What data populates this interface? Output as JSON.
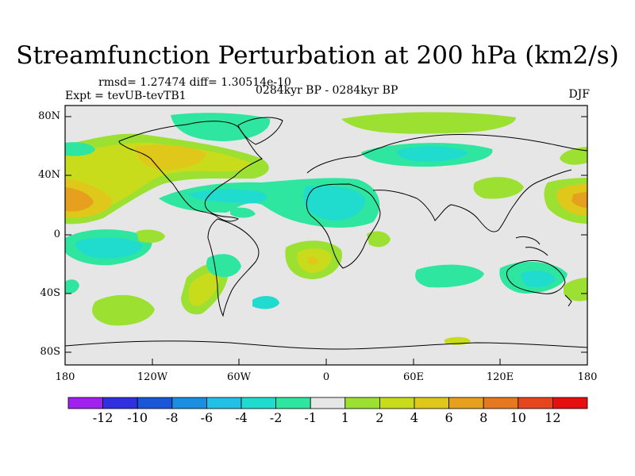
{
  "title": "Streamfunction Perturbation at 200 hPa (km2/s)",
  "subtitle": {
    "stats": "rmsd= 1.27474 diff= 1.30514e-10",
    "experiment": "Expt = tevUB-tevTB1",
    "period": "0284kyr BP - 0284kyr BP",
    "season": "DJF"
  },
  "map": {
    "lat_labels": [
      "80N",
      "40N",
      "0",
      "40S",
      "80S"
    ],
    "lon_labels": [
      "180",
      "120W",
      "60W",
      "0",
      "60E",
      "120E",
      "180"
    ],
    "background": "#e6e6e6",
    "land_outline": "#000000"
  },
  "colorbar": {
    "labels": [
      "-12",
      "-10",
      "-8",
      "-6",
      "-4",
      "-2",
      "-1",
      "1",
      "2",
      "4",
      "6",
      "8",
      "10",
      "12"
    ],
    "colors": [
      "#a020f0",
      "#3030e0",
      "#1a56d8",
      "#1a8ee0",
      "#22c0e6",
      "#20dccf",
      "#2ee6a0",
      "#e6e6e6",
      "#9ce032",
      "#c8dc1c",
      "#e0c81a",
      "#e6a01e",
      "#e67820",
      "#e6461e",
      "#e60e0e"
    ]
  }
}
